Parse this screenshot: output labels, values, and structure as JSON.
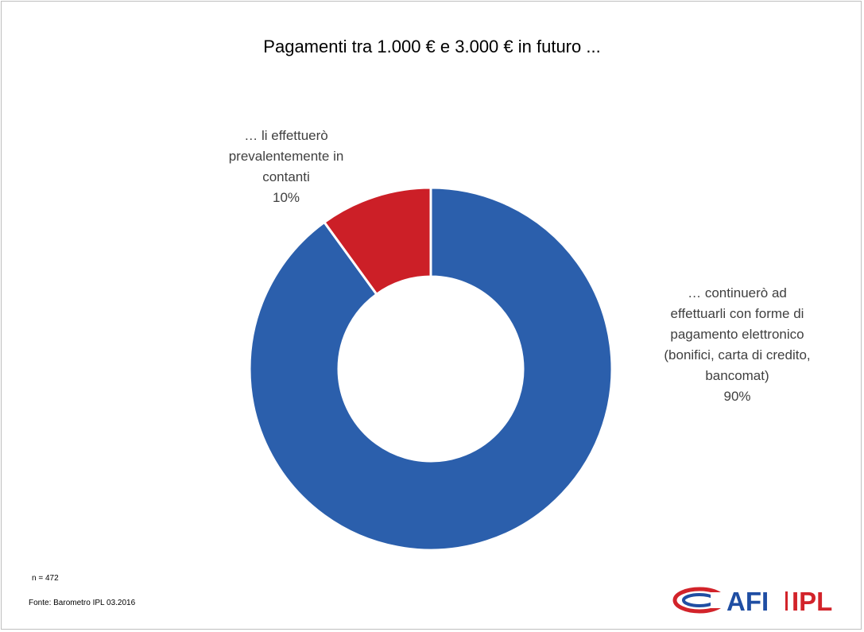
{
  "chart_data": {
    "type": "pie",
    "style": "donut",
    "title": "Pagamenti tra 1.000 € e 3.000 € in futuro ...",
    "slices": [
      {
        "label_lines": [
          "… continuerò ad",
          "effettuarli con forme di",
          "pagamento elettronico",
          "(bonifici, carta di credito,",
          "bancomat)"
        ],
        "value": 90,
        "value_label": "90%",
        "color": "#2b5fac"
      },
      {
        "label_lines": [
          "… li effettuerò",
          "prevalentemente in",
          "contanti"
        ],
        "value": 10,
        "value_label": "10%",
        "color": "#cc1f27"
      }
    ],
    "legend": "none",
    "data_labels": "outside"
  },
  "footnotes": {
    "sample_size": "n = 472",
    "source": "Fonte: Barometro IPL 03.2016"
  },
  "logo": {
    "text_a": "AFI",
    "text_b": "IPL",
    "blue": "#1f4ea3",
    "red": "#d2232a"
  }
}
